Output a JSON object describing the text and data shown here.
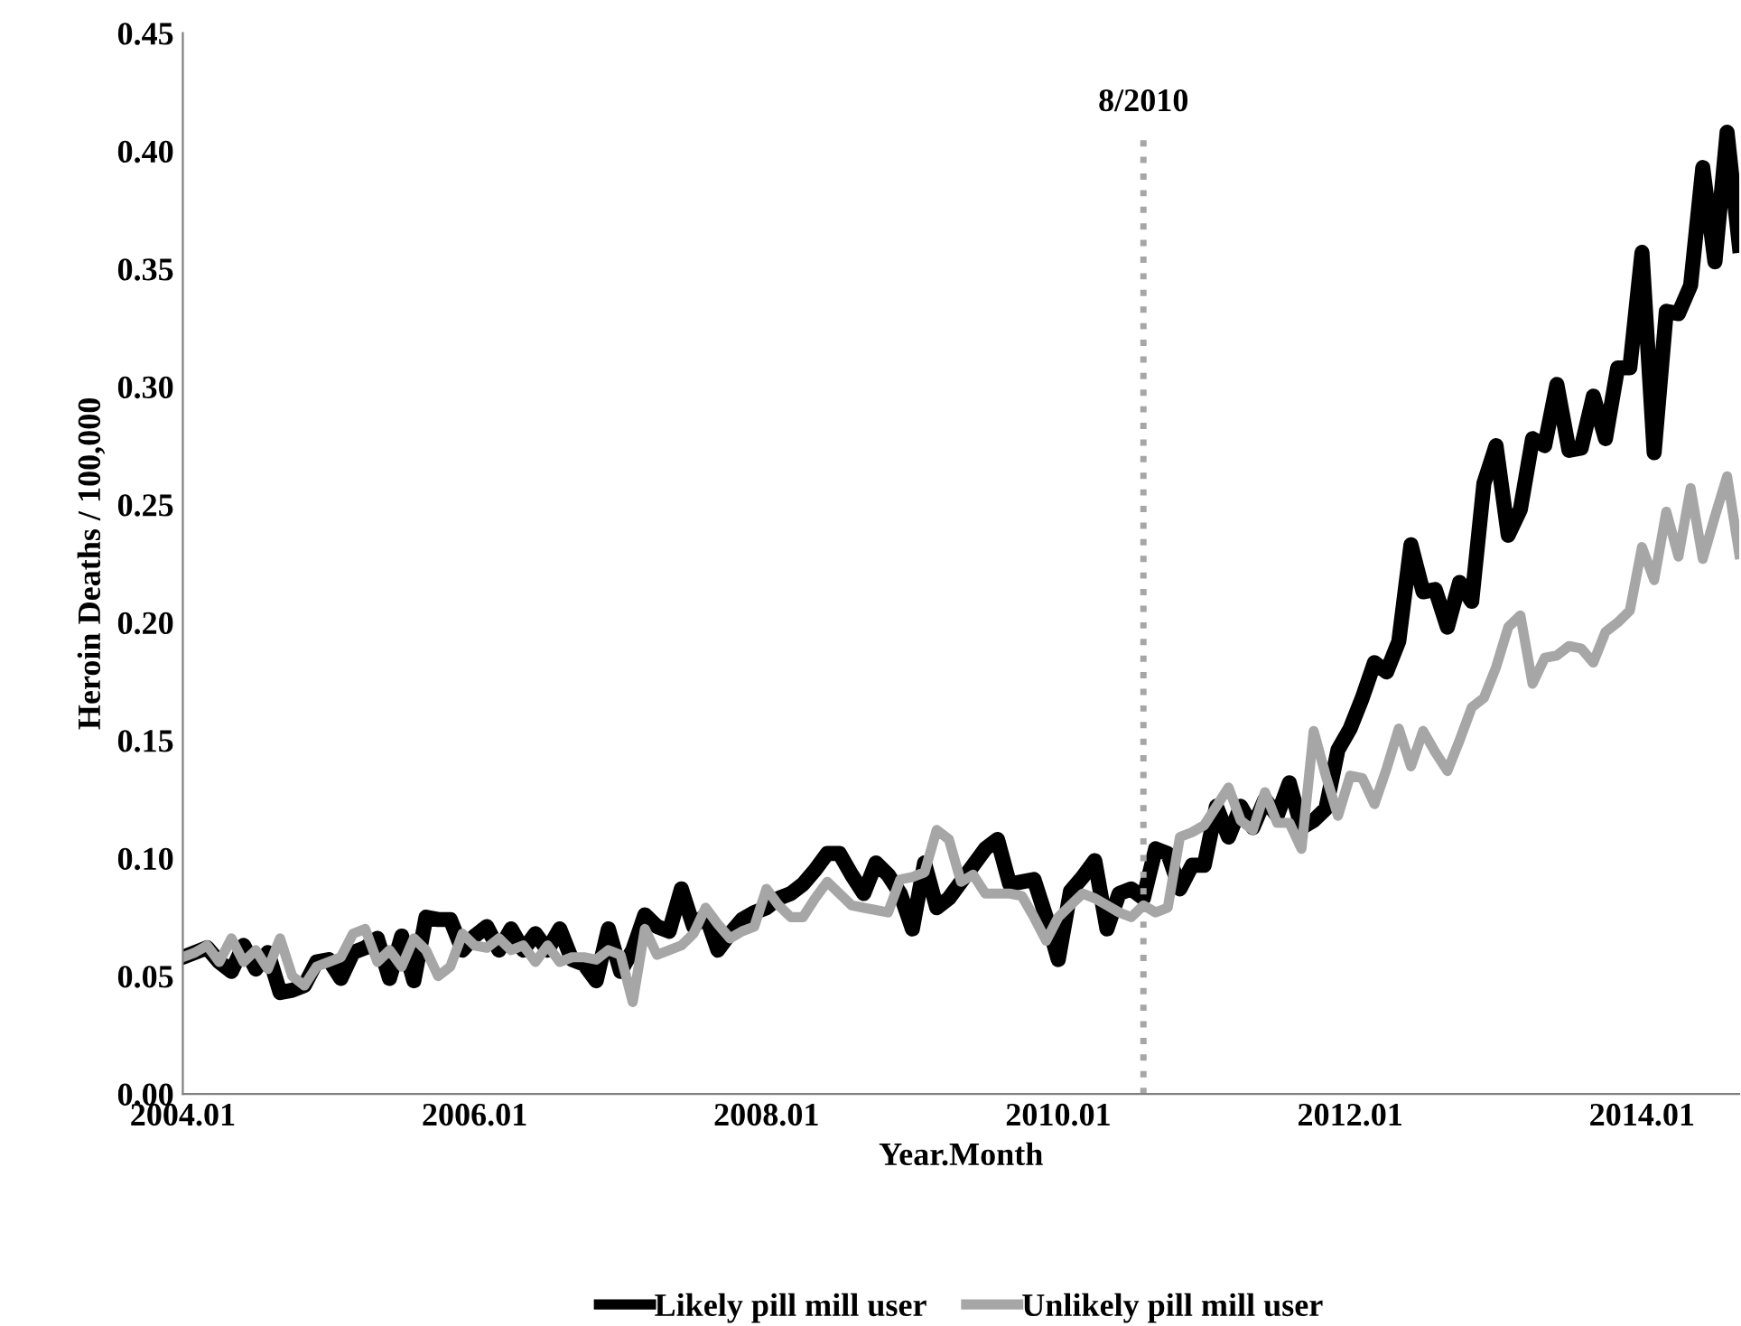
{
  "chart_data": {
    "type": "line",
    "xlabel": "Year.Month",
    "ylabel": "Heroin Deaths / 100,000",
    "x": [
      "2004-01",
      "2004-02",
      "2004-03",
      "2004-04",
      "2004-05",
      "2004-06",
      "2004-07",
      "2004-08",
      "2004-09",
      "2004-10",
      "2004-11",
      "2004-12",
      "2005-01",
      "2005-02",
      "2005-03",
      "2005-04",
      "2005-05",
      "2005-06",
      "2005-07",
      "2005-08",
      "2005-09",
      "2005-10",
      "2005-11",
      "2005-12",
      "2006-01",
      "2006-02",
      "2006-03",
      "2006-04",
      "2006-05",
      "2006-06",
      "2006-07",
      "2006-08",
      "2006-09",
      "2006-10",
      "2006-11",
      "2006-12",
      "2007-01",
      "2007-02",
      "2007-03",
      "2007-04",
      "2007-05",
      "2007-06",
      "2007-07",
      "2007-08",
      "2007-09",
      "2007-10",
      "2007-11",
      "2007-12",
      "2008-01",
      "2008-02",
      "2008-03",
      "2008-04",
      "2008-05",
      "2008-06",
      "2008-07",
      "2008-08",
      "2008-09",
      "2008-10",
      "2008-11",
      "2008-12",
      "2009-01",
      "2009-02",
      "2009-03",
      "2009-04",
      "2009-05",
      "2009-06",
      "2009-07",
      "2009-08",
      "2009-09",
      "2009-10",
      "2009-11",
      "2009-12",
      "2010-01",
      "2010-02",
      "2010-03",
      "2010-04",
      "2010-05",
      "2010-06",
      "2010-07",
      "2010-08",
      "2010-09",
      "2010-10",
      "2010-11",
      "2010-12",
      "2011-01",
      "2011-02",
      "2011-03",
      "2011-04",
      "2011-05",
      "2011-06",
      "2011-07",
      "2011-08",
      "2011-09",
      "2011-10",
      "2011-11",
      "2011-12",
      "2012-01",
      "2012-02",
      "2012-03",
      "2012-04",
      "2012-05",
      "2012-06",
      "2012-07",
      "2012-08",
      "2012-09",
      "2012-10",
      "2012-11",
      "2012-12",
      "2013-01",
      "2013-02",
      "2013-03",
      "2013-04",
      "2013-05",
      "2013-06",
      "2013-07",
      "2013-08",
      "2013-09",
      "2013-10",
      "2013-11",
      "2013-12",
      "2014-01",
      "2014-02",
      "2014-03",
      "2014-04",
      "2014-05",
      "2014-06",
      "2014-07",
      "2014-08",
      "2014-09"
    ],
    "series": [
      {
        "name": "Likely pill mill user",
        "color": "#000000",
        "values": [
          0.058,
          0.06,
          0.062,
          0.056,
          0.052,
          0.063,
          0.053,
          0.06,
          0.043,
          0.044,
          0.046,
          0.056,
          0.057,
          0.049,
          0.06,
          0.062,
          0.066,
          0.049,
          0.067,
          0.048,
          0.075,
          0.074,
          0.074,
          0.061,
          0.067,
          0.071,
          0.061,
          0.07,
          0.061,
          0.068,
          0.061,
          0.07,
          0.057,
          0.055,
          0.048,
          0.07,
          0.052,
          0.061,
          0.076,
          0.071,
          0.069,
          0.087,
          0.071,
          0.076,
          0.061,
          0.068,
          0.074,
          0.077,
          0.079,
          0.083,
          0.085,
          0.089,
          0.095,
          0.102,
          0.102,
          0.093,
          0.085,
          0.098,
          0.093,
          0.085,
          0.07,
          0.098,
          0.079,
          0.083,
          0.09,
          0.097,
          0.104,
          0.108,
          0.089,
          0.09,
          0.091,
          0.075,
          0.057,
          0.086,
          0.092,
          0.099,
          0.07,
          0.085,
          0.087,
          0.083,
          0.104,
          0.102,
          0.087,
          0.097,
          0.097,
          0.122,
          0.109,
          0.122,
          0.113,
          0.125,
          0.118,
          0.132,
          0.113,
          0.116,
          0.121,
          0.146,
          0.155,
          0.168,
          0.183,
          0.179,
          0.192,
          0.233,
          0.213,
          0.214,
          0.198,
          0.217,
          0.209,
          0.259,
          0.275,
          0.237,
          0.248,
          0.278,
          0.275,
          0.301,
          0.273,
          0.274,
          0.296,
          0.278,
          0.308,
          0.308,
          0.357,
          0.272,
          0.332,
          0.331,
          0.343,
          0.393,
          0.353,
          0.408,
          0.36
        ]
      },
      {
        "name": "Unlikely pill mill user",
        "color": "#a6a6a6",
        "values": [
          0.058,
          0.06,
          0.063,
          0.056,
          0.066,
          0.056,
          0.061,
          0.053,
          0.066,
          0.05,
          0.046,
          0.054,
          0.056,
          0.058,
          0.068,
          0.07,
          0.056,
          0.061,
          0.054,
          0.066,
          0.061,
          0.05,
          0.054,
          0.068,
          0.063,
          0.062,
          0.066,
          0.061,
          0.063,
          0.056,
          0.063,
          0.056,
          0.058,
          0.058,
          0.057,
          0.061,
          0.059,
          0.039,
          0.07,
          0.059,
          0.061,
          0.063,
          0.068,
          0.079,
          0.072,
          0.066,
          0.069,
          0.071,
          0.087,
          0.08,
          0.075,
          0.075,
          0.083,
          0.09,
          0.085,
          0.08,
          0.079,
          0.078,
          0.077,
          0.091,
          0.092,
          0.094,
          0.112,
          0.108,
          0.09,
          0.093,
          0.085,
          0.085,
          0.085,
          0.084,
          0.075,
          0.065,
          0.075,
          0.08,
          0.085,
          0.083,
          0.08,
          0.077,
          0.075,
          0.08,
          0.077,
          0.079,
          0.109,
          0.111,
          0.114,
          0.122,
          0.13,
          0.116,
          0.112,
          0.128,
          0.115,
          0.115,
          0.104,
          0.154,
          0.135,
          0.118,
          0.135,
          0.134,
          0.123,
          0.138,
          0.155,
          0.139,
          0.154,
          0.145,
          0.137,
          0.15,
          0.164,
          0.168,
          0.181,
          0.198,
          0.203,
          0.174,
          0.185,
          0.186,
          0.19,
          0.189,
          0.183,
          0.196,
          0.2,
          0.205,
          0.232,
          0.218,
          0.247,
          0.228,
          0.257,
          0.227,
          0.245,
          0.262,
          0.229
        ]
      }
    ],
    "xlim": [
      "2004-01",
      "2014-09"
    ],
    "xticks": [
      {
        "value": "2004-01",
        "label": "2004.01"
      },
      {
        "value": "2006-01",
        "label": "2006.01"
      },
      {
        "value": "2008-01",
        "label": "2008.01"
      },
      {
        "value": "2010-01",
        "label": "2010.01"
      },
      {
        "value": "2012-01",
        "label": "2012.01"
      },
      {
        "value": "2014-01",
        "label": "2014.01"
      }
    ],
    "ylim": [
      0,
      0.45
    ],
    "yticks": [
      {
        "value": 0,
        "label": "0.00"
      },
      {
        "value": 0.05,
        "label": "0.05"
      },
      {
        "value": 0.1,
        "label": "0.10"
      },
      {
        "value": 0.15,
        "label": "0.15"
      },
      {
        "value": 0.2,
        "label": "0.20"
      },
      {
        "value": 0.25,
        "label": "0.25"
      },
      {
        "value": 0.3,
        "label": "0.30"
      },
      {
        "value": 0.35,
        "label": "0.35"
      },
      {
        "value": 0.4,
        "label": "0.40"
      },
      {
        "value": 0.45,
        "label": "0.45"
      }
    ],
    "ref_lines": [
      {
        "axis": "x",
        "value": "2010-08",
        "label": "8/2010",
        "color": "#a6a6a6",
        "line_style": "dotted"
      }
    ],
    "grid": false,
    "legend": "bottom",
    "marker": "none",
    "line_style": "solid"
  }
}
